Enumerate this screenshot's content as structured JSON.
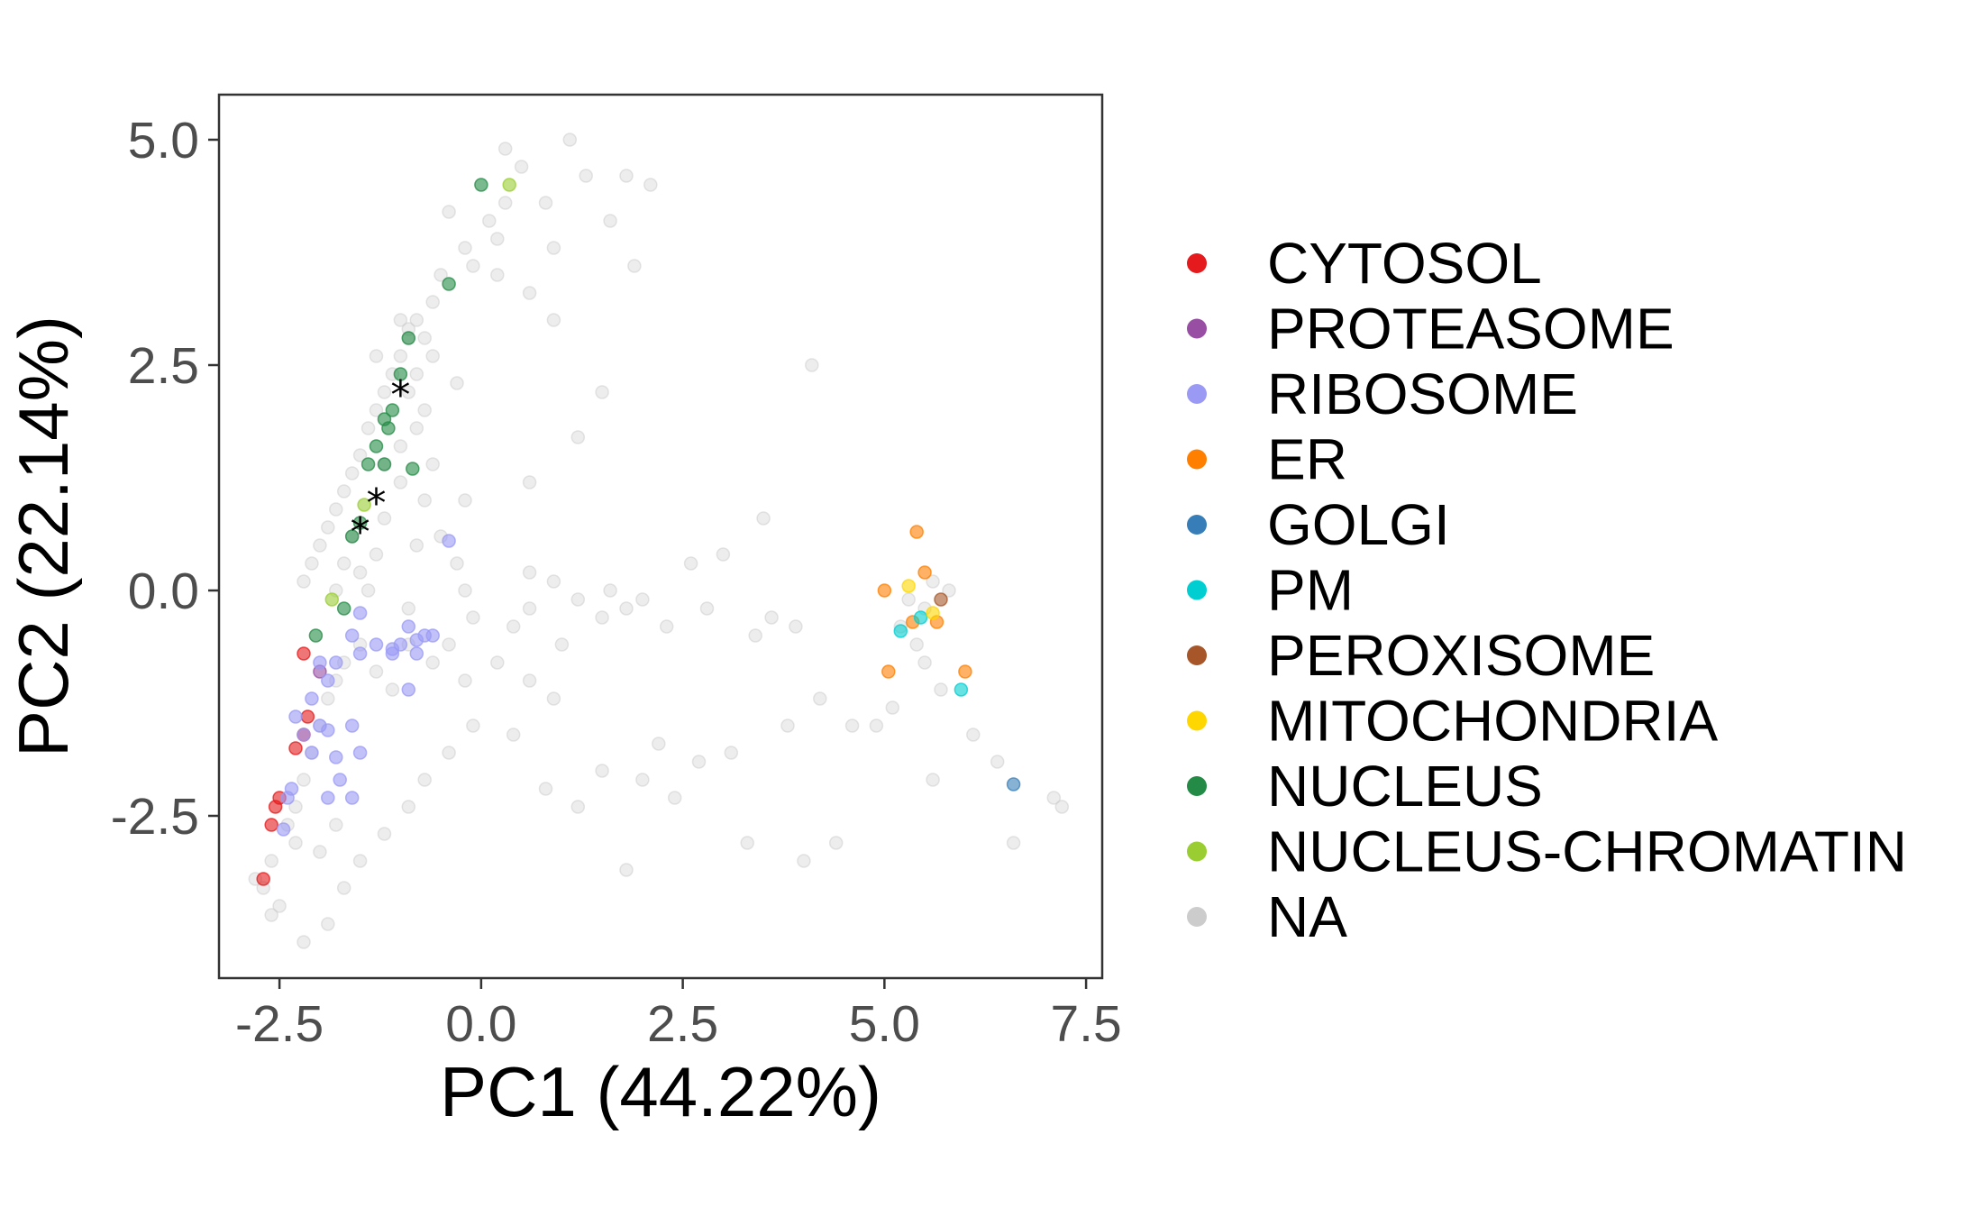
{
  "chart_data": {
    "type": "scatter",
    "xlabel": "PC1 (44.22%)",
    "ylabel": "PC2 (22.14%)",
    "xlim": [
      -3.25,
      7.7
    ],
    "ylim": [
      -4.3,
      5.5
    ],
    "x_ticks": [
      -2.5,
      0.0,
      2.5,
      5.0,
      7.5
    ],
    "x_tick_labels": [
      "-2.5",
      "0.0",
      "2.5",
      "5.0",
      "7.5"
    ],
    "y_ticks": [
      -2.5,
      0.0,
      2.5,
      5.0
    ],
    "y_tick_labels": [
      "-2.5",
      "0.0",
      "2.5",
      "5.0"
    ],
    "grid": false,
    "legend_position": "right",
    "series": [
      {
        "name": "NA",
        "color": "#cccccc",
        "opacity": 0.35,
        "points": [
          [
            0.3,
            4.9
          ],
          [
            0.5,
            4.7
          ],
          [
            0.8,
            4.3
          ],
          [
            1.1,
            5.0
          ],
          [
            1.3,
            4.6
          ],
          [
            1.8,
            4.6
          ],
          [
            2.1,
            4.5
          ],
          [
            1.6,
            4.1
          ],
          [
            0.9,
            3.8
          ],
          [
            0.6,
            3.3
          ],
          [
            -0.1,
            3.6
          ],
          [
            0.1,
            4.1
          ],
          [
            0.3,
            4.3
          ],
          [
            -0.4,
            4.2
          ],
          [
            -0.2,
            3.8
          ],
          [
            0.2,
            3.9
          ],
          [
            -0.5,
            3.5
          ],
          [
            -0.6,
            3.2
          ],
          [
            -0.8,
            3.0
          ],
          [
            -0.7,
            2.8
          ],
          [
            -0.6,
            2.6
          ],
          [
            -0.8,
            2.4
          ],
          [
            -0.9,
            2.2
          ],
          [
            -0.7,
            2.0
          ],
          [
            -0.9,
            2.8
          ],
          [
            -1.0,
            2.6
          ],
          [
            -1.1,
            2.4
          ],
          [
            -1.2,
            2.2
          ],
          [
            -1.3,
            2.0
          ],
          [
            -1.4,
            1.8
          ],
          [
            -1.5,
            1.5
          ],
          [
            -1.6,
            1.3
          ],
          [
            -1.7,
            1.1
          ],
          [
            -1.8,
            0.9
          ],
          [
            -1.9,
            0.7
          ],
          [
            -2.0,
            0.5
          ],
          [
            -2.1,
            0.3
          ],
          [
            -2.2,
            0.1
          ],
          [
            -1.6,
            0.6
          ],
          [
            -1.7,
            0.3
          ],
          [
            -1.8,
            0.0
          ],
          [
            -1.5,
            0.2
          ],
          [
            -1.4,
            0.0
          ],
          [
            -1.3,
            0.4
          ],
          [
            -1.2,
            0.8
          ],
          [
            -1.0,
            1.2
          ],
          [
            -1.0,
            1.6
          ],
          [
            -0.8,
            1.8
          ],
          [
            -0.6,
            1.4
          ],
          [
            -0.7,
            1.0
          ],
          [
            -0.5,
            0.6
          ],
          [
            -0.3,
            0.3
          ],
          [
            -0.2,
            0.0
          ],
          [
            -0.1,
            -0.3
          ],
          [
            0.4,
            -0.4
          ],
          [
            0.6,
            -0.2
          ],
          [
            0.9,
            0.1
          ],
          [
            0.6,
            0.2
          ],
          [
            1.2,
            -0.1
          ],
          [
            1.6,
            0.0
          ],
          [
            1.5,
            -0.3
          ],
          [
            1.8,
            -0.2
          ],
          [
            2.0,
            -0.1
          ],
          [
            2.3,
            -0.4
          ],
          [
            2.6,
            0.3
          ],
          [
            3.0,
            0.4
          ],
          [
            3.5,
            0.8
          ],
          [
            3.6,
            -0.3
          ],
          [
            3.8,
            -1.5
          ],
          [
            4.2,
            -1.2
          ],
          [
            4.6,
            -1.5
          ],
          [
            3.1,
            -1.8
          ],
          [
            2.7,
            -1.9
          ],
          [
            2.2,
            -1.7
          ],
          [
            2.0,
            -2.1
          ],
          [
            2.4,
            -2.3
          ],
          [
            1.5,
            -2.0
          ],
          [
            1.2,
            -2.4
          ],
          [
            0.8,
            -2.2
          ],
          [
            0.4,
            -1.6
          ],
          [
            -0.1,
            -1.5
          ],
          [
            -0.4,
            -1.8
          ],
          [
            -0.7,
            -2.1
          ],
          [
            -0.9,
            -2.4
          ],
          [
            -1.2,
            -2.7
          ],
          [
            -1.5,
            -3.0
          ],
          [
            -1.7,
            -3.3
          ],
          [
            -1.9,
            -3.7
          ],
          [
            -2.2,
            -3.9
          ],
          [
            -2.5,
            -3.5
          ],
          [
            -2.7,
            -3.3
          ],
          [
            -2.6,
            -3.0
          ],
          [
            -2.4,
            -2.6
          ],
          [
            -2.3,
            -2.4
          ],
          [
            -2.2,
            -2.1
          ],
          [
            -2.1,
            -1.8
          ],
          [
            -2.0,
            -1.5
          ],
          [
            -1.9,
            -1.2
          ],
          [
            -1.8,
            -1.0
          ],
          [
            -1.7,
            -0.8
          ],
          [
            -1.5,
            -0.6
          ],
          [
            -1.3,
            -0.9
          ],
          [
            -1.1,
            -1.1
          ],
          [
            -0.9,
            -0.6
          ],
          [
            -0.6,
            -0.8
          ],
          [
            -0.4,
            -0.6
          ],
          [
            -0.2,
            -1.0
          ],
          [
            0.2,
            -0.8
          ],
          [
            1.0,
            -0.6
          ],
          [
            4.0,
            -3.0
          ],
          [
            4.4,
            -2.8
          ],
          [
            5.2,
            -0.4
          ],
          [
            5.3,
            -0.1
          ],
          [
            5.5,
            -0.2
          ],
          [
            5.6,
            0.1
          ],
          [
            5.8,
            0.0
          ],
          [
            5.4,
            -0.6
          ],
          [
            5.5,
            -0.8
          ],
          [
            5.7,
            -1.1
          ],
          [
            5.6,
            -2.1
          ],
          [
            6.1,
            -1.6
          ],
          [
            6.4,
            -1.9
          ],
          [
            6.6,
            -2.8
          ],
          [
            7.1,
            -2.3
          ],
          [
            7.2,
            -2.4
          ],
          [
            4.9,
            -1.5
          ],
          [
            5.1,
            -1.3
          ],
          [
            3.3,
            -2.8
          ],
          [
            1.8,
            -3.1
          ],
          [
            0.6,
            -1.0
          ],
          [
            0.9,
            -1.2
          ],
          [
            2.8,
            -0.2
          ],
          [
            3.4,
            -0.5
          ],
          [
            3.9,
            -0.4
          ],
          [
            4.1,
            2.5
          ],
          [
            1.5,
            2.2
          ],
          [
            0.6,
            1.2
          ],
          [
            1.2,
            1.7
          ],
          [
            -0.2,
            1.0
          ],
          [
            -0.3,
            2.3
          ],
          [
            0.2,
            3.5
          ],
          [
            0.9,
            3.0
          ],
          [
            1.9,
            3.6
          ],
          [
            -1.3,
            2.6
          ],
          [
            -1.0,
            3.0
          ],
          [
            -0.9,
            2.9
          ],
          [
            -1.2,
            1.4
          ],
          [
            -0.8,
            0.5
          ],
          [
            -0.9,
            -0.2
          ],
          [
            -2.3,
            -2.8
          ],
          [
            -2.6,
            -3.6
          ],
          [
            -2.8,
            -3.2
          ],
          [
            -2.0,
            -2.9
          ],
          [
            -1.8,
            -2.6
          ]
        ]
      },
      {
        "name": "CYTOSOL",
        "color": "#e41a1c",
        "opacity": 0.6,
        "points": [
          [
            -2.7,
            -3.2
          ],
          [
            -2.6,
            -2.6
          ],
          [
            -2.55,
            -2.4
          ],
          [
            -2.5,
            -2.3
          ],
          [
            -2.3,
            -1.75
          ],
          [
            -2.2,
            -1.6
          ],
          [
            -2.15,
            -1.4
          ],
          [
            -2.2,
            -0.7
          ]
        ]
      },
      {
        "name": "PROTEASOME",
        "color": "#984ea3",
        "opacity": 0.6,
        "points": [
          [
            -2.0,
            -0.9
          ]
        ]
      },
      {
        "name": "RIBOSOME",
        "color": "#9a9af5",
        "opacity": 0.6,
        "points": [
          [
            -2.45,
            -2.65
          ],
          [
            -2.4,
            -2.3
          ],
          [
            -2.35,
            -2.2
          ],
          [
            -2.3,
            -1.4
          ],
          [
            -2.2,
            -1.6
          ],
          [
            -2.1,
            -1.8
          ],
          [
            -2.0,
            -1.5
          ],
          [
            -1.9,
            -1.55
          ],
          [
            -1.8,
            -1.85
          ],
          [
            -1.9,
            -2.3
          ],
          [
            -1.75,
            -2.1
          ],
          [
            -1.6,
            -2.3
          ],
          [
            -1.6,
            -1.5
          ],
          [
            -1.5,
            -1.8
          ],
          [
            -2.0,
            -0.8
          ],
          [
            -1.8,
            -0.8
          ],
          [
            -1.6,
            -0.5
          ],
          [
            -1.5,
            -0.7
          ],
          [
            -1.3,
            -0.6
          ],
          [
            -1.1,
            -0.65
          ],
          [
            -1.0,
            -0.6
          ],
          [
            -0.8,
            -0.55
          ],
          [
            -0.7,
            -0.5
          ],
          [
            -0.6,
            -0.5
          ],
          [
            -0.9,
            -0.4
          ],
          [
            -0.8,
            -0.7
          ],
          [
            -0.9,
            -1.1
          ],
          [
            -0.4,
            0.55
          ],
          [
            -1.1,
            -0.7
          ],
          [
            -2.1,
            -1.2
          ],
          [
            -1.9,
            -1.0
          ],
          [
            -1.5,
            -0.25
          ]
        ]
      },
      {
        "name": "ER",
        "color": "#ff7f00",
        "opacity": 0.6,
        "points": [
          [
            5.4,
            0.65
          ],
          [
            5.5,
            0.2
          ],
          [
            5.0,
            0.0
          ],
          [
            5.35,
            -0.35
          ],
          [
            5.65,
            -0.35
          ],
          [
            6.0,
            -0.9
          ],
          [
            5.05,
            -0.9
          ]
        ]
      },
      {
        "name": "GOLGI",
        "color": "#377eb8",
        "opacity": 0.6,
        "points": [
          [
            6.6,
            -2.15
          ]
        ]
      },
      {
        "name": "PM",
        "color": "#00ced1",
        "opacity": 0.6,
        "points": [
          [
            5.2,
            -0.45
          ],
          [
            5.45,
            -0.3
          ],
          [
            5.95,
            -1.1
          ]
        ]
      },
      {
        "name": "PEROXISOME",
        "color": "#a65628",
        "opacity": 0.6,
        "points": [
          [
            5.7,
            -0.1
          ]
        ]
      },
      {
        "name": "MITOCHONDRIA",
        "color": "#ffd700",
        "opacity": 0.6,
        "points": [
          [
            5.3,
            0.05
          ],
          [
            5.6,
            -0.25
          ]
        ]
      },
      {
        "name": "NUCLEUS",
        "color": "#238b45",
        "opacity": 0.6,
        "points": [
          [
            0.0,
            4.5
          ],
          [
            -0.4,
            3.4
          ],
          [
            -0.9,
            2.8
          ],
          [
            -1.0,
            2.4
          ],
          [
            -1.1,
            2.0
          ],
          [
            -1.2,
            1.9
          ],
          [
            -1.15,
            1.8
          ],
          [
            -1.3,
            1.6
          ],
          [
            -1.2,
            1.4
          ],
          [
            -1.4,
            1.4
          ],
          [
            -0.85,
            1.35
          ],
          [
            -1.5,
            0.75
          ],
          [
            -1.6,
            0.6
          ],
          [
            -1.7,
            -0.2
          ],
          [
            -2.05,
            -0.5
          ]
        ]
      },
      {
        "name": "NUCLEUS-CHROMATIN",
        "color": "#9acd32",
        "opacity": 0.6,
        "points": [
          [
            0.35,
            4.5
          ],
          [
            -1.45,
            0.95
          ],
          [
            -1.85,
            -0.1
          ]
        ]
      }
    ],
    "annotations": [
      {
        "label": "*",
        "x": -1.0,
        "y": 2.2
      },
      {
        "label": "*",
        "x": -1.3,
        "y": 1.0
      },
      {
        "label": "*",
        "x": -1.5,
        "y": 0.68
      }
    ],
    "legend": [
      {
        "name": "CYTOSOL",
        "color": "#e41a1c"
      },
      {
        "name": "PROTEASOME",
        "color": "#984ea3"
      },
      {
        "name": "RIBOSOME",
        "color": "#9a9af5"
      },
      {
        "name": "ER",
        "color": "#ff7f00"
      },
      {
        "name": "GOLGI",
        "color": "#377eb8"
      },
      {
        "name": "PM",
        "color": "#00ced1"
      },
      {
        "name": "PEROXISOME",
        "color": "#a65628"
      },
      {
        "name": "MITOCHONDRIA",
        "color": "#ffd700"
      },
      {
        "name": "NUCLEUS",
        "color": "#238b45"
      },
      {
        "name": "NUCLEUS-CHROMATIN",
        "color": "#9acd32"
      },
      {
        "name": "NA",
        "color": "#cccccc"
      }
    ]
  }
}
